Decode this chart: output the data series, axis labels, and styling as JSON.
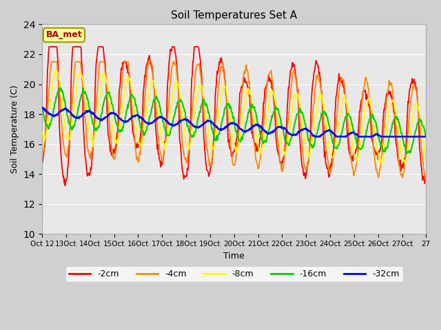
{
  "title": "Soil Temperatures Set A",
  "xlabel": "Time",
  "ylabel": "Soil Temperature (C)",
  "ylim": [
    10,
    24
  ],
  "yticks": [
    10,
    12,
    14,
    16,
    18,
    20,
    22,
    24
  ],
  "annotation_text": "BA_met",
  "series_colors": {
    "-2cm": "#ff0000",
    "-4cm": "#ff8800",
    "-8cm": "#ffff00",
    "-16cm": "#00cc00",
    "-32cm": "#0000ff"
  },
  "xtick_labels": [
    "Oct 12",
    "13Oct",
    "14Oct",
    "15Oct",
    "16Oct",
    "17Oct",
    "18Oct",
    "19Oct",
    "20Oct",
    "21Oct",
    "22Oct",
    "23Oct",
    "24Oct",
    "25Oct",
    "26Oct",
    "27"
  ],
  "n_days": 16,
  "points_per_day": 48,
  "fig_width": 6.4,
  "fig_height": 4.8,
  "dpi": 100
}
